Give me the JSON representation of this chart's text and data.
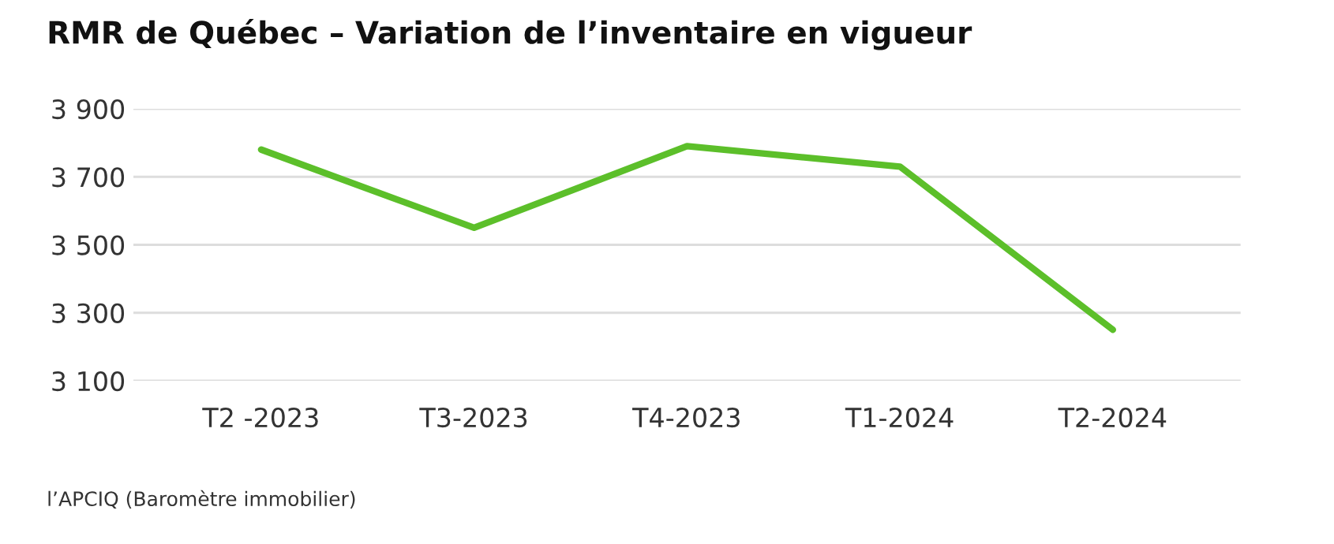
{
  "chart_data": {
    "type": "line",
    "title": "RMR de Québec – Variation de l’inventaire en vigueur",
    "categories": [
      "T2 -2023",
      "T3-2023",
      "T4-2023",
      "T1-2024",
      "T2-2024"
    ],
    "series": [
      {
        "color": "#5cbf2a",
        "values": [
          3780,
          3550,
          3790,
          3730,
          3250
        ]
      }
    ],
    "ylim": [
      3100,
      3900
    ],
    "yticks": [
      {
        "value": 3100,
        "label": "3 100"
      },
      {
        "value": 3300,
        "label": "3 300"
      },
      {
        "value": 3500,
        "label": "3 500"
      },
      {
        "value": 3700,
        "label": "3 700"
      },
      {
        "value": 3900,
        "label": "3 900"
      }
    ],
    "grid": "y",
    "legend": false,
    "marker": "none",
    "line_style": "solid",
    "annotations": [
      "l’APCIQ (Baromètre immobilier)"
    ]
  }
}
